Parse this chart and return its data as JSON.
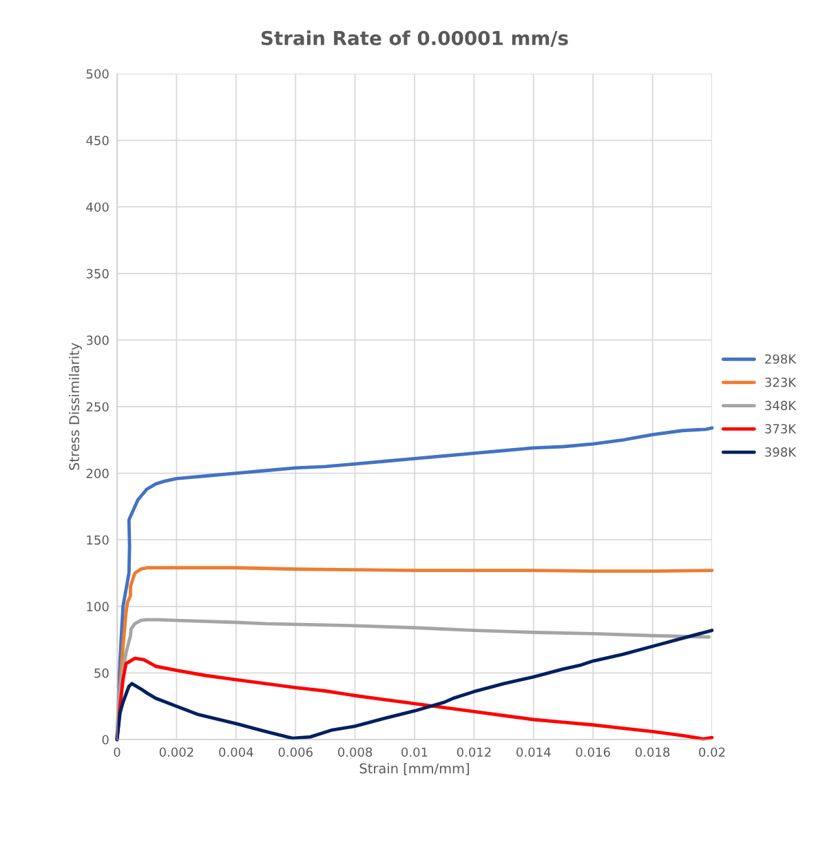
{
  "chart_data": {
    "type": "line",
    "title": "Strain Rate of 0.00001 mm/s",
    "xlabel": "Strain [mm/mm]",
    "ylabel": "Stress Dissimilarity",
    "xlim": [
      0,
      0.02
    ],
    "xticks": [
      0,
      0.002,
      0.004,
      0.006,
      0.008,
      0.01,
      0.012,
      0.014,
      0.016,
      0.018,
      0.02
    ],
    "ylim": [
      0,
      500
    ],
    "yticks": [
      0,
      50,
      100,
      150,
      200,
      250,
      300,
      350,
      400,
      450,
      500
    ],
    "grid": true,
    "legend": "right",
    "line_style": "solid",
    "marker": "none",
    "series": [
      {
        "name": "298K",
        "color": "#4472c4",
        "x": [
          0,
          0.0001,
          0.0002,
          0.0004,
          0.00042,
          0.0004,
          0.0005,
          0.0007,
          0.001,
          0.0013,
          0.0016,
          0.002,
          0.003,
          0.004,
          0.005,
          0.006,
          0.007,
          0.008,
          0.009,
          0.01,
          0.011,
          0.012,
          0.013,
          0.014,
          0.015,
          0.016,
          0.017,
          0.018,
          0.019,
          0.0198,
          0.02
        ],
        "values": [
          0,
          60,
          100,
          125,
          145,
          165,
          170,
          180,
          188,
          192,
          194,
          196,
          198,
          200,
          202,
          204,
          205,
          207,
          209,
          211,
          213,
          215,
          217,
          219,
          220,
          222,
          225,
          229,
          232,
          233,
          234
        ]
      },
      {
        "name": "323K",
        "color": "#ed7d31",
        "x": [
          0,
          0.0001,
          0.0002,
          0.0003,
          0.00035,
          0.00045,
          0.00045,
          0.0006,
          0.0008,
          0.001,
          0.002,
          0.004,
          0.006,
          0.008,
          0.01,
          0.012,
          0.014,
          0.016,
          0.018,
          0.02
        ],
        "values": [
          0,
          40,
          70,
          95,
          103,
          108,
          115,
          125,
          128,
          129,
          129,
          129,
          128,
          127.5,
          127,
          127,
          127,
          126.5,
          126.5,
          127
        ]
      },
      {
        "name": "348K",
        "color": "#a5a5a5",
        "x": [
          0,
          0.0001,
          0.0003,
          0.00045,
          0.00047,
          0.0006,
          0.0008,
          0.001,
          0.0014,
          0.002,
          0.004,
          0.005,
          0.006,
          0.008,
          0.01,
          0.012,
          0.014,
          0.016,
          0.018,
          0.0199
        ],
        "values": [
          0,
          40,
          65,
          78,
          83,
          87,
          89.5,
          90,
          90,
          89.5,
          88,
          87,
          86.5,
          85.5,
          84,
          82,
          80.5,
          79.5,
          78,
          77
        ]
      },
      {
        "name": "373K",
        "color": "#ff0000",
        "x": [
          0,
          0.0001,
          0.0002,
          0.0003,
          0.0006,
          0.0009,
          0.0013,
          0.002,
          0.003,
          0.004,
          0.005,
          0.006,
          0.007,
          0.008,
          0.009,
          0.01,
          0.011,
          0.012,
          0.013,
          0.014,
          0.015,
          0.016,
          0.017,
          0.018,
          0.019,
          0.0197,
          0.02
        ],
        "values": [
          0,
          25,
          45,
          57,
          61,
          60,
          55,
          52,
          48,
          45,
          42,
          39,
          36.5,
          33,
          30,
          27,
          24,
          21,
          18,
          15,
          13,
          11,
          8.5,
          6,
          3,
          0.5,
          1.5
        ]
      },
      {
        "name": "398K",
        "color": "#002060",
        "x": [
          0,
          0.0001,
          0.0002,
          0.0004,
          0.0005,
          0.0008,
          0.001,
          0.0013,
          0.002,
          0.0027,
          0.004,
          0.005,
          0.0059,
          0.0065,
          0.0072,
          0.008,
          0.009,
          0.01,
          0.011,
          0.0113,
          0.012,
          0.013,
          0.014,
          0.015,
          0.0156,
          0.016,
          0.017,
          0.018,
          0.019,
          0.02
        ],
        "values": [
          0,
          20,
          28,
          40,
          42,
          38,
          35,
          31,
          25,
          19,
          12,
          6,
          1,
          2,
          7,
          10,
          16,
          21.5,
          28,
          31,
          36,
          42,
          47,
          53,
          56,
          59,
          64,
          70,
          76,
          82
        ]
      }
    ]
  }
}
